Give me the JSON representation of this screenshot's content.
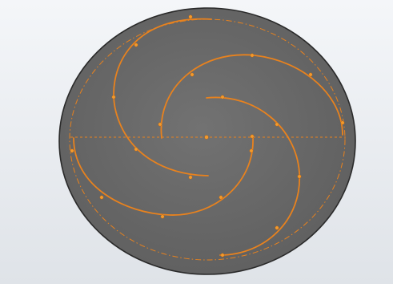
{
  "colors": {
    "background_top": "#f4f6f9",
    "background_bottom": "#dfe3e8",
    "face_fill": "#6b6b6b",
    "face_edge": "#2a2a2a",
    "sketch_orange": "#e8821e",
    "point_orange": "#f39a2c"
  },
  "sketch": {
    "entities": [
      {
        "type": "construction-circle",
        "style": "dash-dot"
      },
      {
        "type": "centerline",
        "style": "dashed"
      },
      {
        "type": "center-point"
      },
      {
        "type": "spline-arm",
        "count": 4
      }
    ],
    "control_points_visible": true
  }
}
